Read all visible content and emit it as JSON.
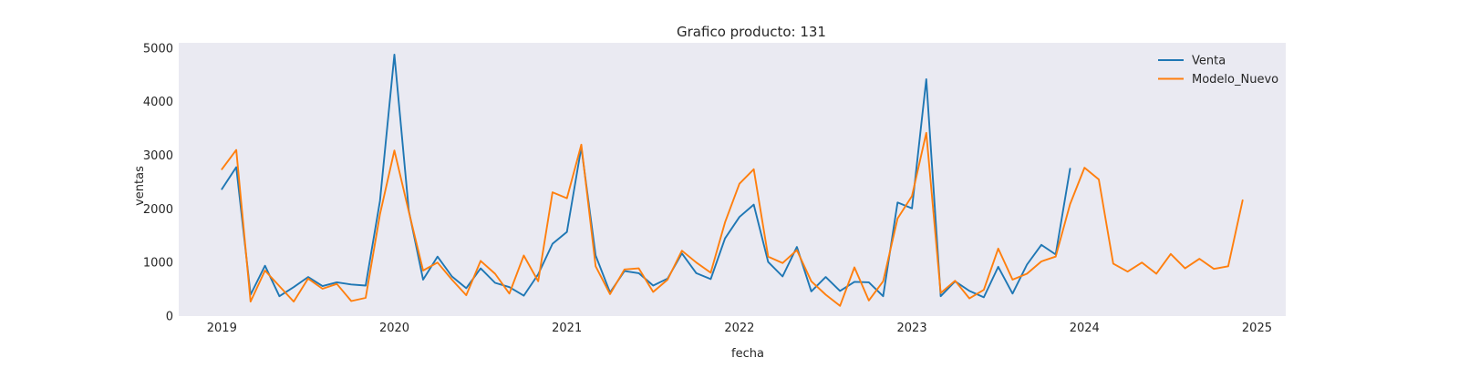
{
  "chart_data": {
    "type": "line",
    "title": "Grafico producto: 131",
    "xlabel": "fecha",
    "ylabel": "ventas",
    "x_ticks": [
      "2019",
      "2020",
      "2021",
      "2022",
      "2023",
      "2024",
      "2025"
    ],
    "y_ticks": [
      "0",
      "1000",
      "2000",
      "3000",
      "4000",
      "5000"
    ],
    "xlim": [
      "2018-10-01",
      "2025-03-01"
    ],
    "ylim": [
      0,
      5100
    ],
    "grid": false,
    "legend_position": "top-right",
    "colors": {
      "Venta": "#1f77b4",
      "Modelo_Nuevo": "#ff7f0e",
      "plot_bg": "#eaeaf2"
    },
    "series": [
      {
        "name": "Venta",
        "x": [
          "2019-01",
          "2019-02",
          "2019-03",
          "2019-04",
          "2019-05",
          "2019-06",
          "2019-07",
          "2019-08",
          "2019-09",
          "2019-10",
          "2019-11",
          "2019-12",
          "2020-01",
          "2020-02",
          "2020-03",
          "2020-04",
          "2020-05",
          "2020-06",
          "2020-07",
          "2020-08",
          "2020-09",
          "2020-10",
          "2020-11",
          "2020-12",
          "2021-01",
          "2021-02",
          "2021-03",
          "2021-04",
          "2021-05",
          "2021-06",
          "2021-07",
          "2021-08",
          "2021-09",
          "2021-10",
          "2021-11",
          "2021-12",
          "2022-01",
          "2022-02",
          "2022-03",
          "2022-04",
          "2022-05",
          "2022-06",
          "2022-07",
          "2022-08",
          "2022-09",
          "2022-10",
          "2022-11",
          "2022-12",
          "2023-01",
          "2023-02",
          "2023-03",
          "2023-04",
          "2023-05",
          "2023-06",
          "2023-07",
          "2023-08",
          "2023-09",
          "2023-10",
          "2023-11",
          "2023-12"
        ],
        "values": [
          2370,
          2780,
          400,
          940,
          370,
          540,
          730,
          560,
          630,
          590,
          570,
          2150,
          4880,
          1970,
          680,
          1110,
          740,
          520,
          890,
          620,
          540,
          380,
          780,
          1350,
          1570,
          3150,
          1130,
          440,
          840,
          800,
          570,
          700,
          1170,
          800,
          690,
          1450,
          1850,
          2080,
          1010,
          740,
          1290,
          460,
          730,
          470,
          640,
          630,
          370,
          2120,
          2010,
          4420,
          370,
          650,
          470,
          350,
          920,
          420,
          960,
          1330,
          1150,
          2750
        ]
      },
      {
        "name": "Modelo_Nuevo",
        "x": [
          "2019-01",
          "2019-02",
          "2019-03",
          "2019-04",
          "2019-05",
          "2019-06",
          "2019-07",
          "2019-08",
          "2019-09",
          "2019-10",
          "2019-11",
          "2019-12",
          "2020-01",
          "2020-02",
          "2020-03",
          "2020-04",
          "2020-05",
          "2020-06",
          "2020-07",
          "2020-08",
          "2020-09",
          "2020-10",
          "2020-11",
          "2020-12",
          "2021-01",
          "2021-02",
          "2021-03",
          "2021-04",
          "2021-05",
          "2021-06",
          "2021-07",
          "2021-08",
          "2021-09",
          "2021-10",
          "2021-11",
          "2021-12",
          "2022-01",
          "2022-02",
          "2022-03",
          "2022-04",
          "2022-05",
          "2022-06",
          "2022-07",
          "2022-08",
          "2022-09",
          "2022-10",
          "2022-11",
          "2022-12",
          "2023-01",
          "2023-02",
          "2023-03",
          "2023-04",
          "2023-05",
          "2023-06",
          "2023-07",
          "2023-08",
          "2023-09",
          "2023-10",
          "2023-11",
          "2023-12",
          "2024-01",
          "2024-02",
          "2024-03",
          "2024-04",
          "2024-05",
          "2024-06",
          "2024-07",
          "2024-08",
          "2024-09",
          "2024-10",
          "2024-11",
          "2024-12"
        ],
        "values": [
          2740,
          3100,
          270,
          850,
          560,
          270,
          700,
          510,
          600,
          280,
          340,
          1900,
          3090,
          1950,
          850,
          1000,
          680,
          390,
          1030,
          790,
          420,
          1130,
          650,
          2310,
          2200,
          3200,
          930,
          410,
          870,
          890,
          450,
          680,
          1220,
          1000,
          810,
          1750,
          2470,
          2740,
          1110,
          990,
          1230,
          650,
          400,
          190,
          910,
          290,
          650,
          1820,
          2240,
          3420,
          430,
          660,
          330,
          490,
          1260,
          680,
          790,
          1020,
          1110,
          2090,
          2770,
          2550,
          980,
          830,
          1000,
          790,
          1160,
          890,
          1070,
          880,
          930,
          2160
        ]
      }
    ]
  }
}
